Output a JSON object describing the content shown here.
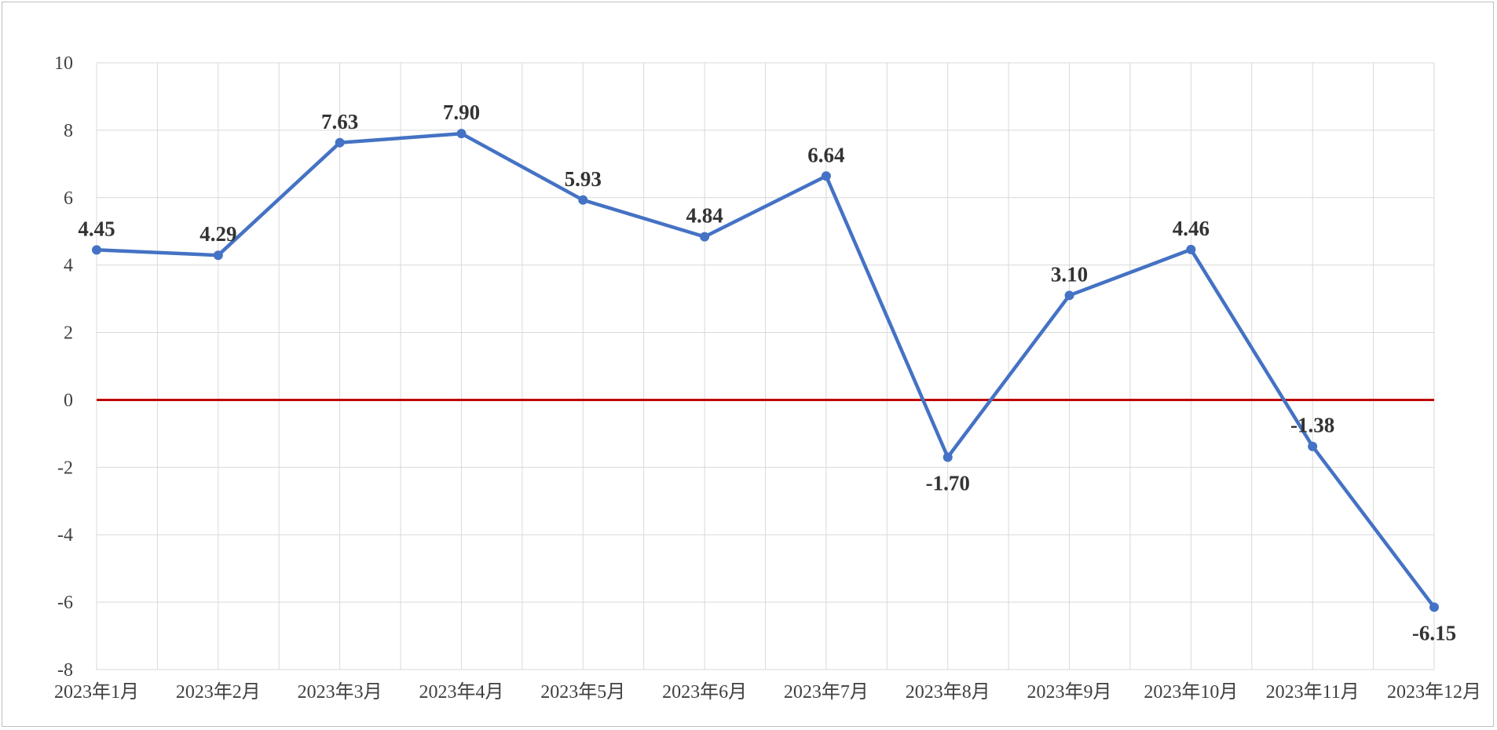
{
  "chart_data": {
    "type": "line",
    "title": "",
    "xlabel": "",
    "ylabel": "",
    "categories": [
      "2023年1月",
      "2023年2月",
      "2023年3月",
      "2023年4月",
      "2023年5月",
      "2023年6月",
      "2023年7月",
      "2023年8月",
      "2023年9月",
      "2023年10月",
      "2023年11月",
      "2023年12月"
    ],
    "series": [
      {
        "values": [
          4.45,
          4.29,
          7.63,
          7.9,
          5.93,
          4.84,
          6.64,
          -1.7,
          3.1,
          4.46,
          -1.38,
          -6.15
        ],
        "labels": [
          "4.45",
          "4.29",
          "7.63",
          "7.90",
          "5.93",
          "4.84",
          "6.64",
          "-1.70",
          "3.10",
          "4.46",
          "-1.38",
          "-6.15"
        ],
        "color": "#4472c4"
      }
    ],
    "ylim": [
      -8,
      10
    ],
    "yticks": [
      10,
      8,
      6,
      4,
      2,
      0,
      -2,
      -4,
      -6,
      -8
    ],
    "ytick_labels": [
      "10",
      "8",
      "6",
      "4",
      "2",
      "0",
      "-2",
      "-4",
      "-6",
      "-8"
    ],
    "reference_line": {
      "y": 0,
      "color": "#c00000"
    },
    "grid": true,
    "legend": "none",
    "colors": {
      "grid": "#d9d9d9",
      "axis_text": "#404040",
      "label_text": "#333333"
    }
  }
}
